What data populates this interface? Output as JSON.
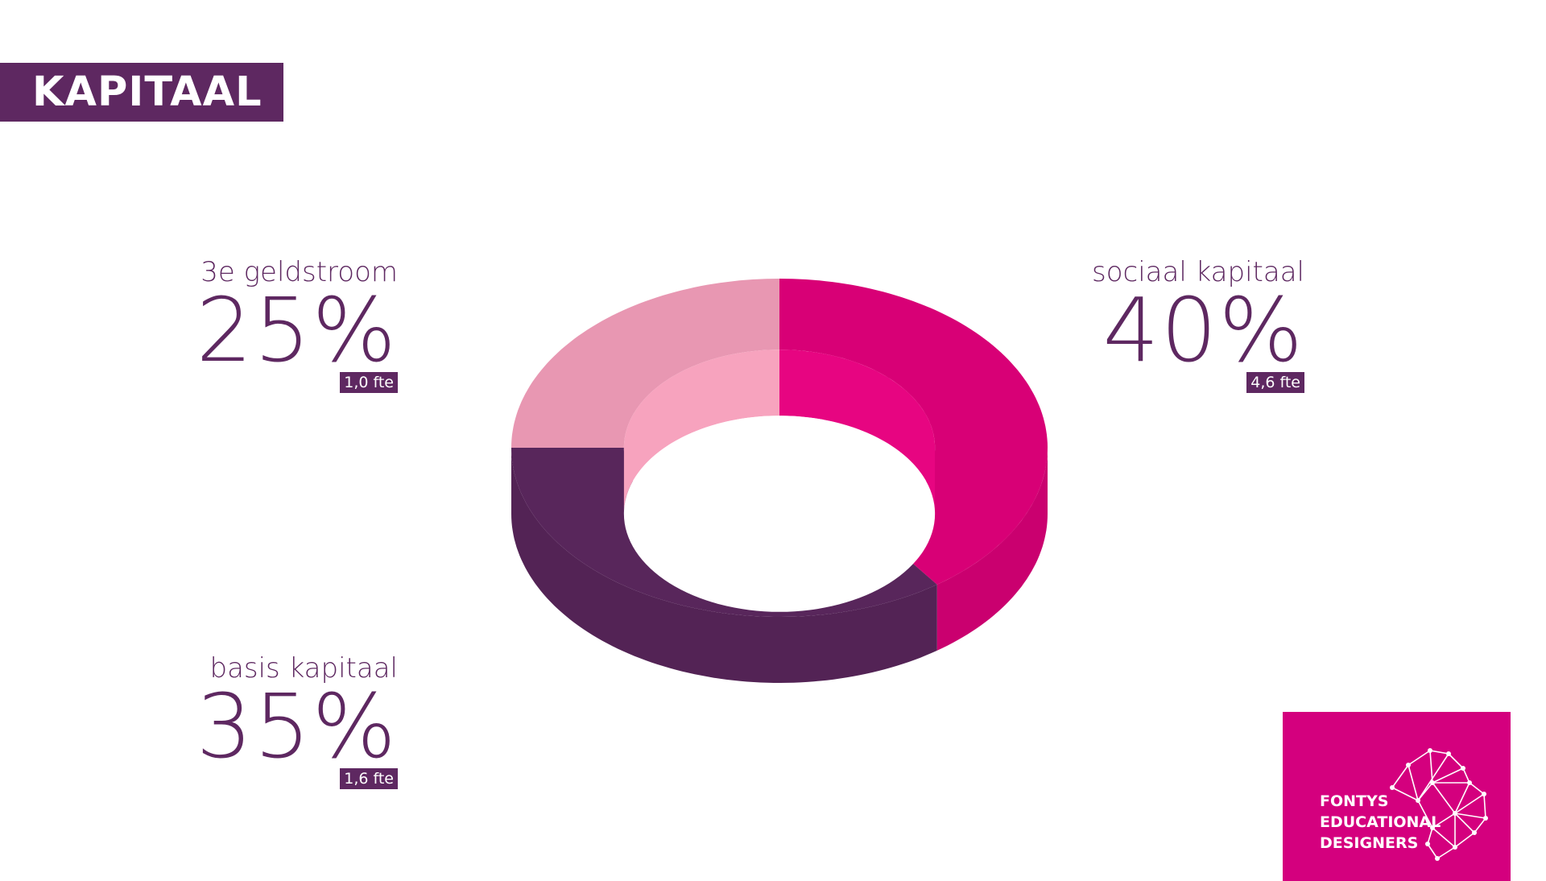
{
  "title": "KAPITAAL",
  "chart_data": {
    "type": "pie",
    "variant": "3d-donut",
    "title": "",
    "slices": [
      {
        "label": "sociaal kapitaal",
        "percent_label": "40%",
        "value": 40,
        "fte": "4,6 fte",
        "color": "#e6007e"
      },
      {
        "label": "basis kapitaal",
        "percent_label": "35%",
        "value": 35,
        "fte": "1,6 fte",
        "color": "#5e2861"
      },
      {
        "label": "3e geldstroom",
        "percent_label": "25%",
        "value": 25,
        "fte": "1,0 fte",
        "color": "#f7a1bd"
      }
    ]
  },
  "logo": {
    "line1": "FONTYS",
    "line2": "EDUCATIONAL",
    "line3": "DESIGNERS",
    "color": "#d4007e"
  }
}
